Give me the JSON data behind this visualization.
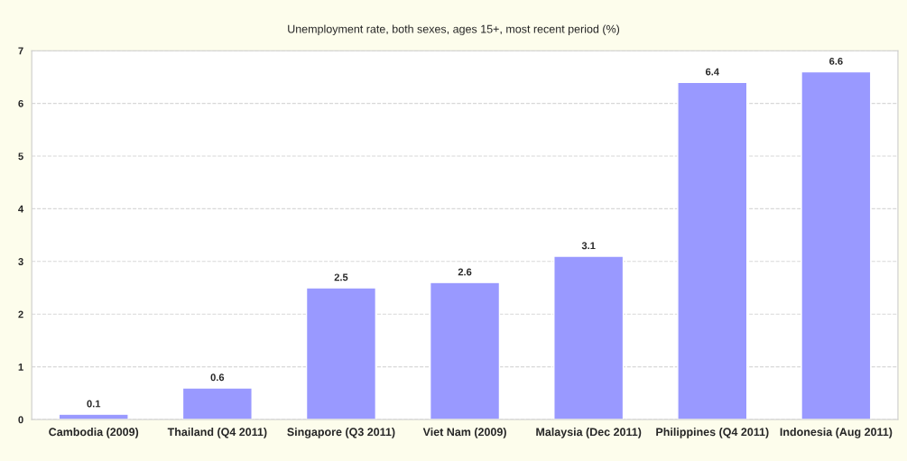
{
  "chart_data": {
    "type": "bar",
    "title": "Unemployment rate, both sexes, ages 15+, most recent period (%)",
    "categories": [
      "Cambodia (2009)",
      "Thailand (Q4 2011)",
      "Singapore (Q3 2011)",
      "Viet Nam (2009)",
      "Malaysia (Dec 2011)",
      "Philippines (Q4 2011)",
      "Indonesia (Aug 2011)"
    ],
    "values": [
      0.1,
      0.6,
      2.5,
      2.6,
      3.1,
      6.4,
      6.6
    ],
    "color": "#9999ff",
    "ylim": [
      0,
      7
    ],
    "yticks": [
      0,
      1,
      2,
      3,
      4,
      5,
      6,
      7
    ],
    "grid": "y",
    "data_labels": true
  }
}
